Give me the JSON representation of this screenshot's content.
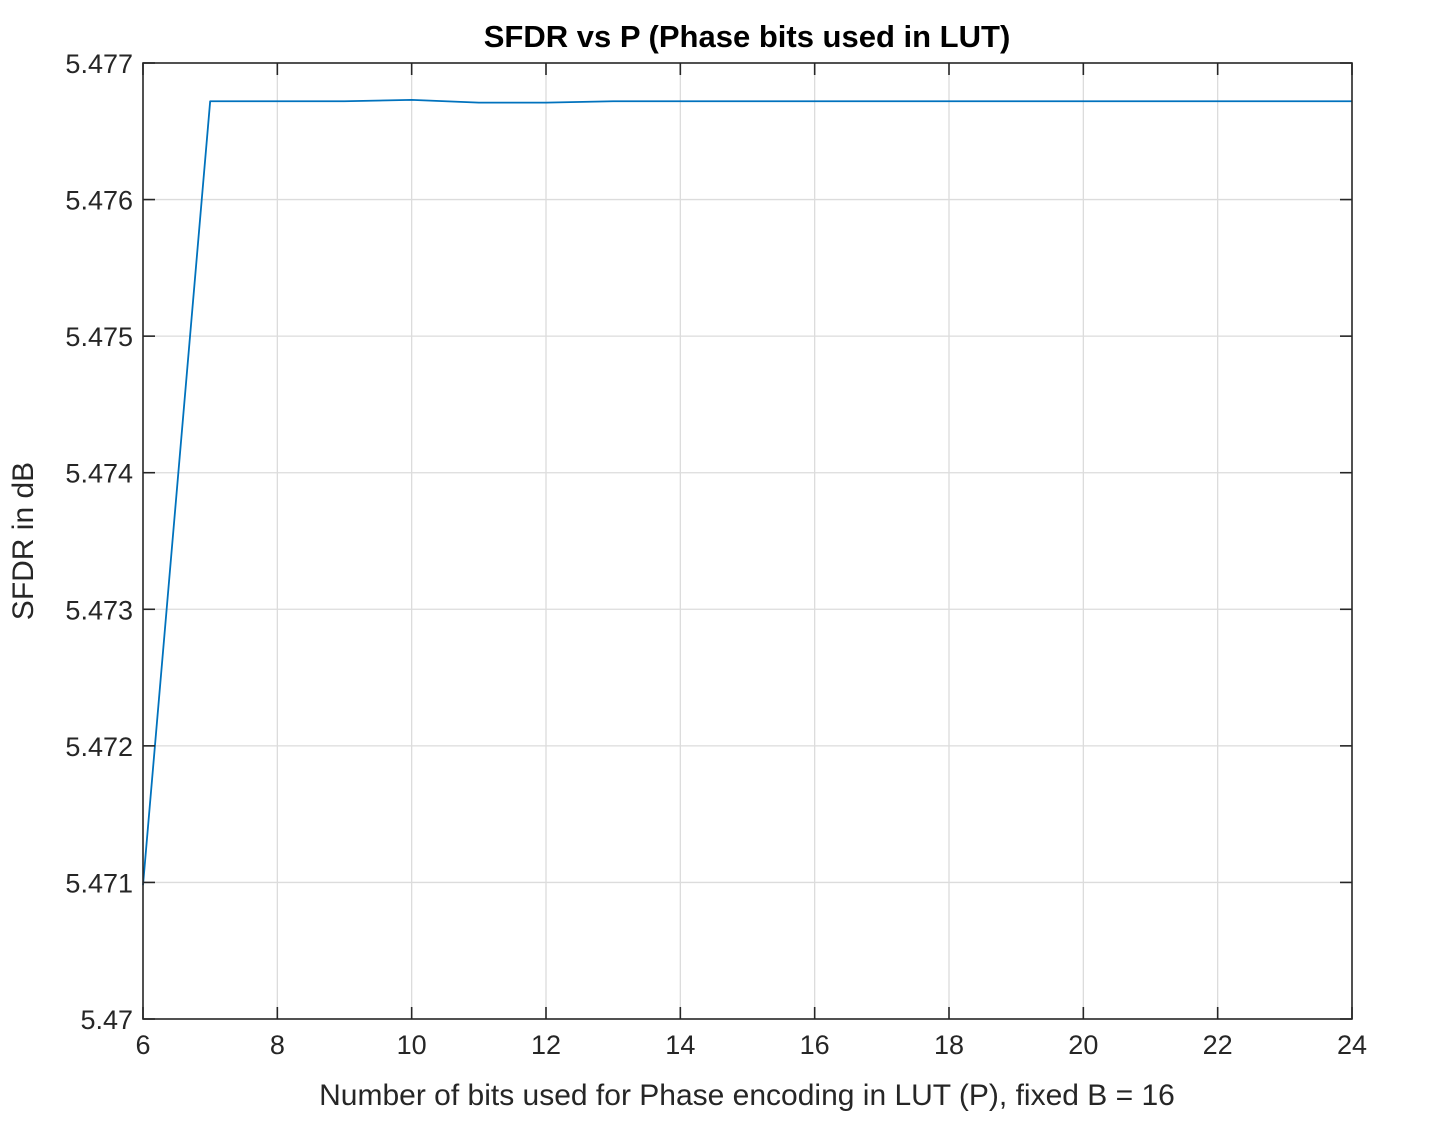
{
  "chart_data": {
    "type": "line",
    "title": "SFDR vs P (Phase bits used in LUT)",
    "xlabel": "Number of bits used for Phase encoding in LUT (P), fixed B = 16",
    "ylabel": "SFDR in dB",
    "xlim": [
      6,
      24
    ],
    "ylim": [
      5.47,
      5.477
    ],
    "xticks": [
      6,
      8,
      10,
      12,
      14,
      16,
      18,
      20,
      22,
      24
    ],
    "xtick_labels": [
      "6",
      "8",
      "10",
      "12",
      "14",
      "16",
      "18",
      "20",
      "22",
      "24"
    ],
    "yticks": [
      5.47,
      5.471,
      5.472,
      5.473,
      5.474,
      5.475,
      5.476,
      5.477
    ],
    "ytick_labels": [
      "5.47",
      "5.471",
      "5.472",
      "5.473",
      "5.474",
      "5.475",
      "5.476",
      "5.477"
    ],
    "grid": true,
    "series": [
      {
        "color": "#0072bd",
        "x": [
          6,
          7,
          8,
          9,
          10,
          11,
          12,
          13,
          14,
          15,
          16,
          17,
          18,
          19,
          20,
          21,
          22,
          23,
          24
        ],
        "y": [
          5.47098,
          5.47672,
          5.47672,
          5.47672,
          5.47673,
          5.47671,
          5.47671,
          5.47672,
          5.47672,
          5.47672,
          5.47672,
          5.47672,
          5.47672,
          5.47672,
          5.47672,
          5.47672,
          5.47672,
          5.47672,
          5.47672
        ]
      }
    ]
  }
}
